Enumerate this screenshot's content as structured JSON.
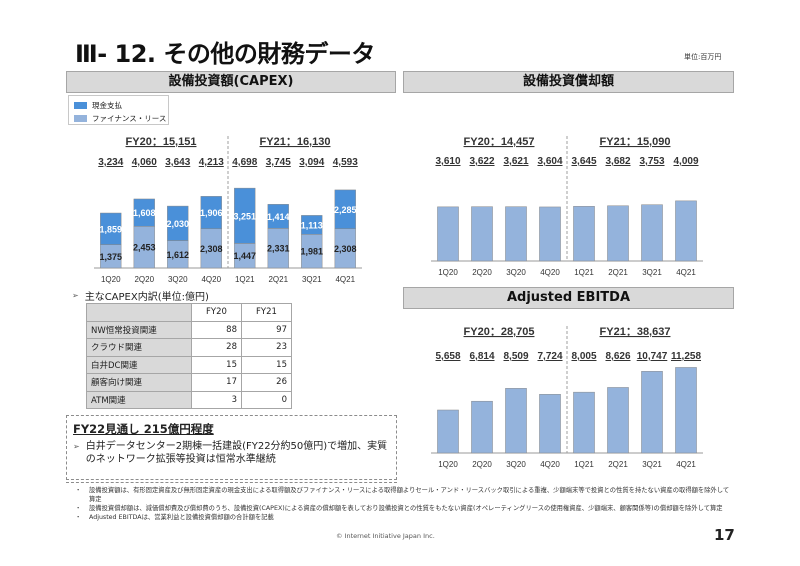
{
  "page": {
    "title": "Ⅲ- 12.  その他の財務データ",
    "unit": "単位:百万円",
    "page_number": "17",
    "copyright": "© Internet Initiative Japan Inc."
  },
  "sections": {
    "capex": "設備投資額(CAPEX)",
    "depreciation": "設備投資償却額",
    "ebitda": "Adjusted EBITDA"
  },
  "legend": {
    "cash": "現金支払",
    "lease": "ファイナンス・リース"
  },
  "colors": {
    "cash": "#4a90d9",
    "lease": "#94b3dc",
    "header_bg": "#d9d9d9"
  },
  "chart_data": [
    {
      "type": "bar",
      "name": "capex",
      "title": "設備投資額(CAPEX)",
      "stacked": true,
      "categories": [
        "1Q20",
        "2Q20",
        "3Q20",
        "4Q20",
        "1Q21",
        "2Q21",
        "3Q21",
        "4Q21"
      ],
      "series": [
        {
          "name": "ファイナンス・リース",
          "values": [
            1375,
            2453,
            1612,
            2308,
            1447,
            2331,
            1981,
            2308
          ]
        },
        {
          "name": "現金支払",
          "values": [
            1859,
            1608,
            2030,
            1906,
            3251,
            1414,
            1113,
            2285
          ]
        }
      ],
      "totals": [
        "3,234",
        "4,060",
        "3,643",
        "4,213",
        "4,698",
        "3,745",
        "3,094",
        "4,593"
      ],
      "fy_labels": [
        "FY20：15,151",
        "FY21：16,130"
      ],
      "legend": "top-left",
      "ylim": [
        0,
        5000
      ]
    },
    {
      "type": "bar",
      "name": "depreciation",
      "title": "設備投資償却額",
      "categories": [
        "1Q20",
        "2Q20",
        "3Q20",
        "4Q20",
        "1Q21",
        "2Q21",
        "3Q21",
        "4Q21"
      ],
      "values": [
        3610,
        3622,
        3621,
        3604,
        3645,
        3682,
        3753,
        4009
      ],
      "totals": [
        "3,610",
        "3,622",
        "3,621",
        "3,604",
        "3,645",
        "3,682",
        "3,753",
        "4,009"
      ],
      "fy_labels": [
        "FY20：14,457",
        "FY21：15,090"
      ],
      "ylim": [
        0,
        6000
      ]
    },
    {
      "type": "bar",
      "name": "ebitda",
      "title": "Adjusted EBITDA",
      "categories": [
        "1Q20",
        "2Q20",
        "3Q20",
        "4Q20",
        "1Q21",
        "2Q21",
        "3Q21",
        "4Q21"
      ],
      "values": [
        5658,
        6814,
        8509,
        7724,
        8005,
        8626,
        10747,
        11258
      ],
      "totals": [
        "5,658",
        "6,814",
        "8,509",
        "7,724",
        "8,005",
        "8,626",
        "10,747",
        "11,258"
      ],
      "fy_labels": [
        "FY20：28,705",
        "FY21：38,637"
      ],
      "ylim": [
        0,
        12500
      ]
    }
  ],
  "capex_breakdown": {
    "title": "主なCAPEX内訳(単位:億円)",
    "columns": [
      "FY20",
      "FY21"
    ],
    "rows": [
      {
        "label": "NW恒常投資関連",
        "fy20": "88",
        "fy21": "97"
      },
      {
        "label": "クラウド関連",
        "fy20": "28",
        "fy21": "23"
      },
      {
        "label": "白井DC関連",
        "fy20": "15",
        "fy21": "15"
      },
      {
        "label": "顧客向け関連",
        "fy20": "17",
        "fy21": "26"
      },
      {
        "label": "ATM関連",
        "fy20": "3",
        "fy21": "0"
      }
    ]
  },
  "outlook": {
    "title": "FY22見通し  215億円程度",
    "body": "白井データセンター2期棟一括建設(FY22分約50億円)で増加、実質のネットワーク拡張等投資は恒常水準継続"
  },
  "notes": [
    "設備投資額は、有形固定資産及び無形固定資産の現金支出による取得額及びファイナンス・リースによる取得額よりセール・アンド・リースバック取引による重複、少額端末等で投資との性質を持たない資産の取得額を除外して算定",
    "設備投資償却額は、減価償却費及び償却費のうち、設備投資(CAPEX)による資産の償却額を表しており設備投資との性質をもたない資産(オペレーティングリースの使用権資産、少額端末、顧客関係等)の償却額を除外して算定",
    "Adjusted EBITDAは、営業利益と設備投資償却額の合計額を記載"
  ]
}
